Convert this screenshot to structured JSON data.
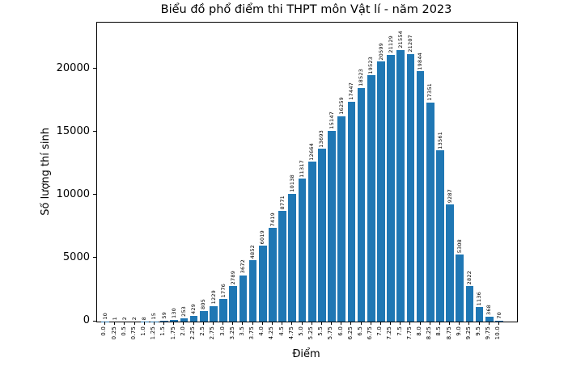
{
  "chart_data": {
    "type": "bar",
    "title": "Biểu đồ phổ điểm thi THPT môn Vật lí - năm 2023",
    "xlabel": "Điểm",
    "ylabel": "Số lượng thí sinh",
    "categories": [
      "0.0",
      "0.25",
      "0.5",
      "0.75",
      "1.0",
      "1.25",
      "1.5",
      "1.75",
      "2.0",
      "2.25",
      "2.5",
      "2.75",
      "3.0",
      "3.25",
      "3.5",
      "3.75",
      "4.0",
      "4.25",
      "4.5",
      "4.75",
      "5.0",
      "5.25",
      "5.5",
      "5.75",
      "6.0",
      "6.25",
      "6.5",
      "6.75",
      "7.0",
      "7.25",
      "7.5",
      "7.75",
      "8.0",
      "8.25",
      "8.5",
      "8.75",
      "9.0",
      "9.25",
      "9.5",
      "9.75",
      "10.0"
    ],
    "values": [
      10,
      1,
      2,
      2,
      8,
      15,
      59,
      130,
      253,
      429,
      805,
      1229,
      1776,
      2789,
      3672,
      4852,
      6019,
      7419,
      8771,
      10138,
      11317,
      12664,
      13693,
      15147,
      16259,
      17447,
      18523,
      19523,
      20599,
      21129,
      21554,
      21207,
      19844,
      17351,
      13561,
      9287,
      5308,
      2822,
      1136,
      368,
      70
    ],
    "yticks": [
      0,
      5000,
      10000,
      15000,
      20000
    ],
    "ylim": [
      0,
      23700
    ],
    "bar_color": "#1f77b4",
    "text_color": "#000000",
    "grid": false,
    "legend": null,
    "bar_value_labels_shown": true
  }
}
